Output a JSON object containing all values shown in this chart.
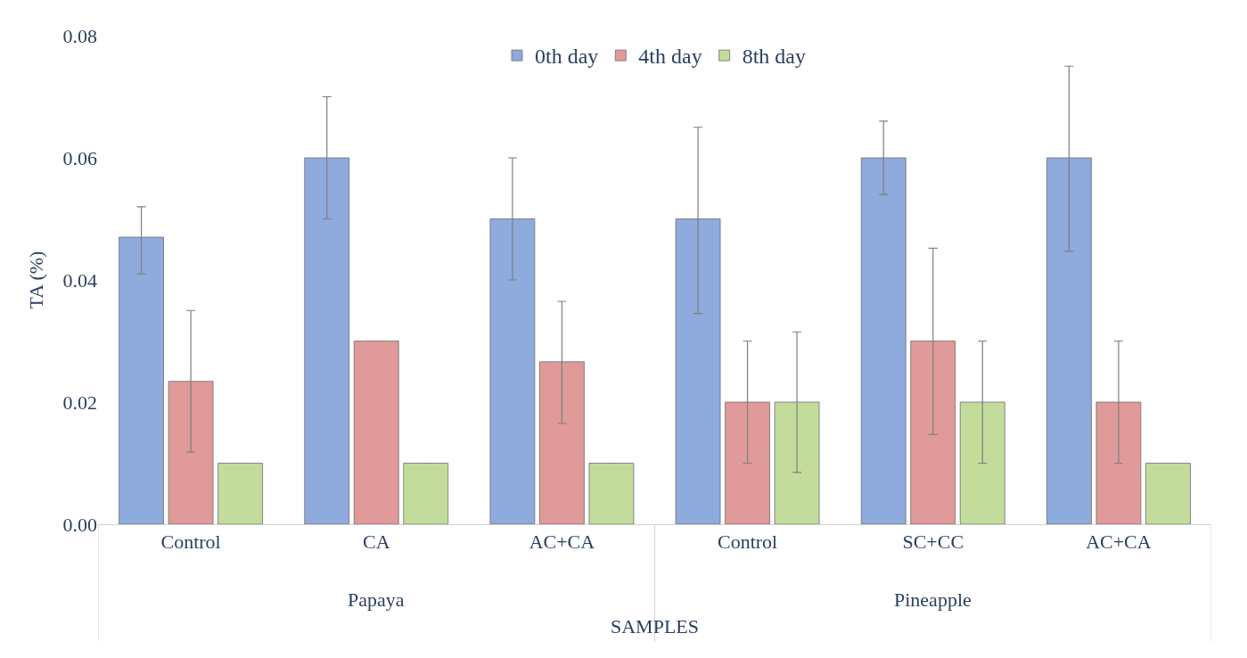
{
  "chart_data": {
    "type": "bar",
    "xlabel": "SAMPLES",
    "ylabel": "TA (%)",
    "categories": [
      "Control",
      "CA",
      "AC+CA",
      "Control",
      "SC+CC",
      "AC+CA"
    ],
    "annotations": [
      "Papaya",
      "Pineapple"
    ],
    "series": [
      {
        "name": "0th day",
        "color": "#8faadc",
        "values": [
          0.047,
          0.06,
          0.05,
          0.05,
          0.06,
          0.06
        ],
        "errors": [
          [
            0.041,
            0.052
          ],
          [
            0.05,
            0.07
          ],
          [
            0.04,
            0.06
          ],
          [
            0.0345,
            0.065
          ],
          [
            0.054,
            0.066
          ],
          [
            0.0447,
            0.075
          ]
        ]
      },
      {
        "name": "4th day",
        "color": "#e09a9a",
        "values": [
          0.0234,
          0.03,
          0.0266,
          0.02,
          0.03,
          0.02
        ],
        "errors": [
          [
            0.0118,
            0.035
          ],
          null,
          [
            0.0165,
            0.0365
          ],
          [
            0.01,
            0.03
          ],
          [
            0.0147,
            0.0452
          ],
          [
            0.01,
            0.03
          ]
        ]
      },
      {
        "name": "8th day",
        "color": "#c3dc9b",
        "values": [
          0.01,
          0.01,
          0.01,
          0.02,
          0.02,
          0.01
        ],
        "errors": [
          null,
          null,
          null,
          [
            0.0085,
            0.0315
          ],
          [
            0.01,
            0.03
          ],
          null
        ]
      }
    ],
    "ylim": [
      0,
      0.08
    ],
    "yticks": [
      {
        "value": 0,
        "label": "0.00"
      },
      {
        "value": 0.02,
        "label": "0.02"
      },
      {
        "value": 0.04,
        "label": "0.04"
      },
      {
        "value": 0.06,
        "label": "0.06"
      },
      {
        "value": 0.08,
        "label": "0.08"
      }
    ],
    "legend": "top"
  }
}
